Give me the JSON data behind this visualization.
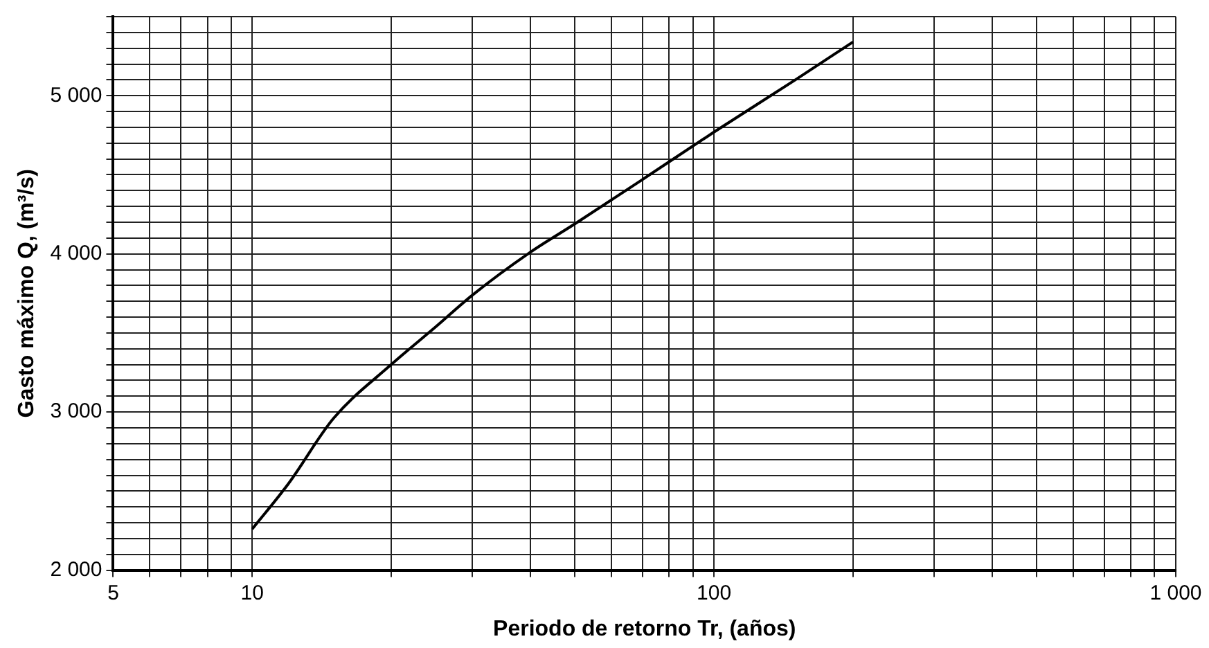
{
  "chart_data": {
    "type": "line",
    "xlabel": "Periodo de retorno Tr, (años)",
    "ylabel": "Gasto máximo Q, (m³/s)",
    "log": "x",
    "grid": true,
    "marker": "none",
    "line_style": "solid",
    "legend": false,
    "xlim": [
      5,
      1000
    ],
    "ylim": [
      2000,
      5500
    ],
    "xticks": [
      5,
      10,
      {
        "value": 6,
        "label": null
      },
      {
        "value": 7,
        "label": null
      },
      {
        "value": 8,
        "label": null
      },
      {
        "value": 9,
        "label": null
      },
      {
        "value": 20,
        "label": null
      },
      {
        "value": 30,
        "label": null
      },
      {
        "value": 40,
        "label": null
      },
      {
        "value": 50,
        "label": null
      },
      {
        "value": 60,
        "label": null
      },
      {
        "value": 70,
        "label": null
      },
      {
        "value": 80,
        "label": null
      },
      {
        "value": 90,
        "label": null
      },
      100,
      {
        "value": 200,
        "label": null
      },
      {
        "value": 300,
        "label": null
      },
      {
        "value": 400,
        "label": null
      },
      {
        "value": 500,
        "label": null
      },
      {
        "value": 600,
        "label": null
      },
      {
        "value": 700,
        "label": null
      },
      {
        "value": 800,
        "label": null
      },
      {
        "value": 900,
        "label": null
      },
      {
        "value": 1000,
        "label": "1 000"
      }
    ],
    "yticks": [
      {
        "value": 2000,
        "label": "2 000"
      },
      {
        "value": 2100,
        "label": null
      },
      {
        "value": 2200,
        "label": null
      },
      {
        "value": 2300,
        "label": null
      },
      {
        "value": 2400,
        "label": null
      },
      {
        "value": 2500,
        "label": null
      },
      {
        "value": 2600,
        "label": null
      },
      {
        "value": 2700,
        "label": null
      },
      {
        "value": 2800,
        "label": null
      },
      {
        "value": 2900,
        "label": null
      },
      {
        "value": 3000,
        "label": "3 000"
      },
      {
        "value": 3100,
        "label": null
      },
      {
        "value": 3200,
        "label": null
      },
      {
        "value": 3300,
        "label": null
      },
      {
        "value": 3400,
        "label": null
      },
      {
        "value": 3500,
        "label": null
      },
      {
        "value": 3600,
        "label": null
      },
      {
        "value": 3700,
        "label": null
      },
      {
        "value": 3800,
        "label": null
      },
      {
        "value": 3900,
        "label": null
      },
      {
        "value": 4000,
        "label": "4 000"
      },
      {
        "value": 4100,
        "label": null
      },
      {
        "value": 4200,
        "label": null
      },
      {
        "value": 4300,
        "label": null
      },
      {
        "value": 4400,
        "label": null
      },
      {
        "value": 4500,
        "label": null
      },
      {
        "value": 4600,
        "label": null
      },
      {
        "value": 4700,
        "label": null
      },
      {
        "value": 4800,
        "label": null
      },
      {
        "value": 4900,
        "label": null
      },
      {
        "value": 5000,
        "label": "5 000"
      },
      {
        "value": 5100,
        "label": null
      },
      {
        "value": 5200,
        "label": null
      },
      {
        "value": 5300,
        "label": null
      },
      {
        "value": 5400,
        "label": null
      },
      {
        "value": 5500,
        "label": null
      }
    ],
    "x": [
      10,
      12,
      15,
      20,
      25,
      30,
      40,
      50,
      70,
      100,
      150,
      200
    ],
    "series": [
      {
        "color": "#000000",
        "values": [
          2260,
          2550,
          2960,
          3300,
          3540,
          3740,
          4010,
          4190,
          4470,
          4770,
          5100,
          5340
        ]
      }
    ]
  }
}
